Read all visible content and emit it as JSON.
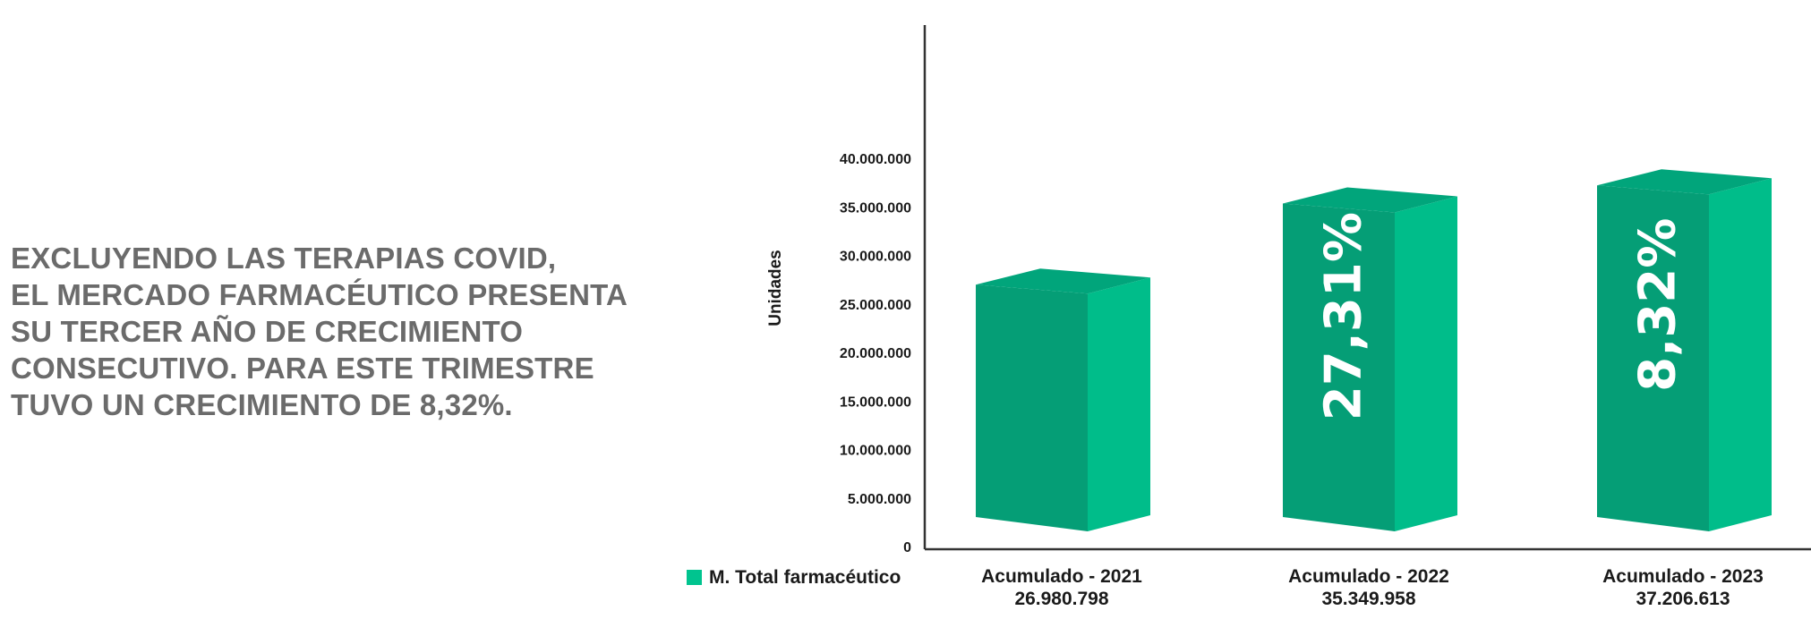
{
  "headline": {
    "lines": [
      "EXCLUYENDO LAS TERAPIAS COVID,",
      "EL MERCADO FARMACÉUTICO PRESENTA",
      "SU TERCER AÑO DE CRECIMIENTO",
      "CONSECUTIVO. PARA ESTE TRIMESTRE",
      "TUVO UN CRECIMIENTO DE 8,32%."
    ]
  },
  "colors": {
    "front": "#059e76",
    "side": "#00bd8a",
    "top": "#01a57b",
    "legend_swatch": "#00c48f",
    "axis": "#333333",
    "headline": "#6b6b6b"
  },
  "chart_data": {
    "type": "bar",
    "style": "3d",
    "ylabel": "Unidades",
    "ylim": [
      0,
      40000000
    ],
    "yticks": [
      0,
      5000000,
      10000000,
      15000000,
      20000000,
      25000000,
      30000000,
      35000000,
      40000000
    ],
    "ytick_labels": [
      "0",
      "5.000.000",
      "10.000.000",
      "15.000.000",
      "20.000.000",
      "25.000.000",
      "30.000.000",
      "35.000.000",
      "40.000.000"
    ],
    "categories": [
      "Acumulado - 2021",
      "Acumulado - 2022",
      "Acumulado - 2023"
    ],
    "series": [
      {
        "name": "M. Total farmacéutico",
        "values": [
          26980798,
          35349958,
          37206613
        ],
        "value_labels": [
          "26.980.798",
          "35.349.958",
          "37.206.613"
        ],
        "bar_annotations": [
          "",
          "27,31%",
          "8,32%"
        ]
      }
    ],
    "legend": "bottom-left",
    "grid": false
  }
}
